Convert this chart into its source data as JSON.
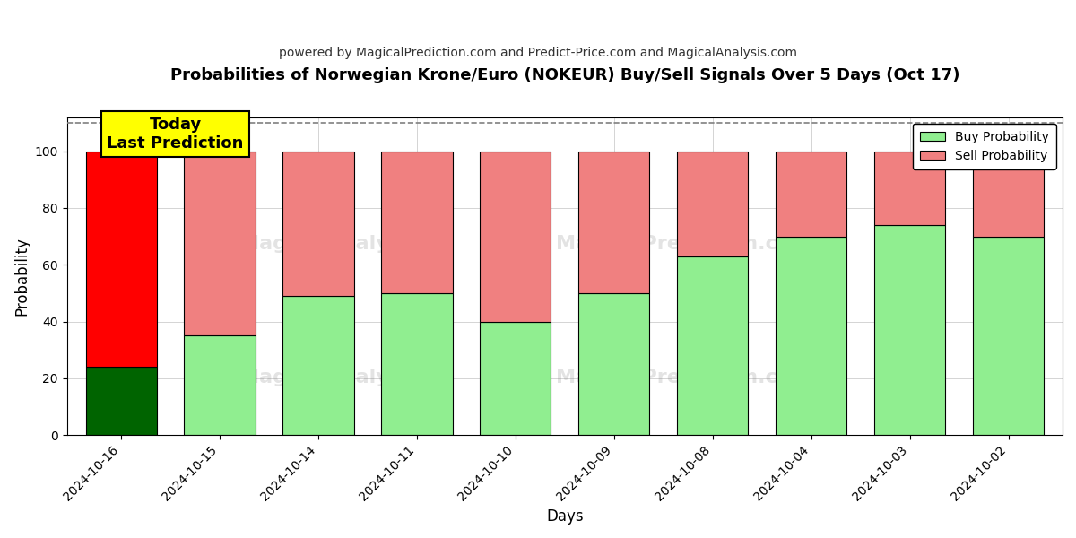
{
  "title": "Probabilities of Norwegian Krone/Euro (NOKEUR) Buy/Sell Signals Over 5 Days (Oct 17)",
  "subtitle": "powered by MagicalPrediction.com and Predict-Price.com and MagicalAnalysis.com",
  "xlabel": "Days",
  "ylabel": "Probability",
  "categories": [
    "2024-10-16",
    "2024-10-15",
    "2024-10-14",
    "2024-10-11",
    "2024-10-10",
    "2024-10-09",
    "2024-10-08",
    "2024-10-04",
    "2024-10-03",
    "2024-10-02"
  ],
  "buy_values": [
    24,
    35,
    49,
    50,
    40,
    50,
    63,
    70,
    74,
    70
  ],
  "sell_values": [
    76,
    65,
    51,
    50,
    60,
    50,
    37,
    30,
    26,
    30
  ],
  "buy_color_first": "#006400",
  "sell_color_first": "#ff0000",
  "buy_color_rest": "#90EE90",
  "sell_color_rest": "#F08080",
  "bar_edge_color": "#000000",
  "ylim": [
    0,
    112
  ],
  "yticks": [
    0,
    20,
    40,
    60,
    80,
    100
  ],
  "dashed_line_y": 110,
  "legend_buy_label": "Buy Probability",
  "legend_sell_label": "Sell Probability",
  "today_label": "Today\nLast Prediction",
  "background_color": "#ffffff",
  "grid_color": "#aaaaaa"
}
